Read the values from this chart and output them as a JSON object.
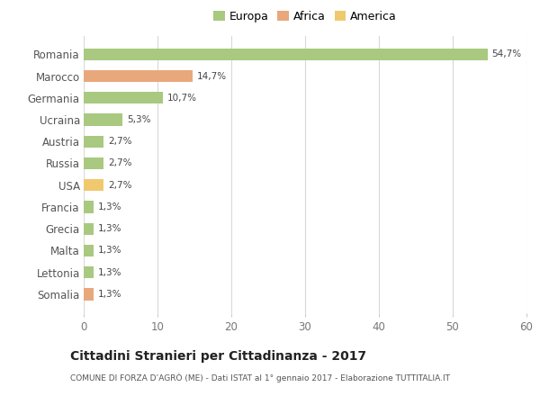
{
  "categories": [
    "Romania",
    "Marocco",
    "Germania",
    "Ucraina",
    "Austria",
    "Russia",
    "USA",
    "Francia",
    "Grecia",
    "Malta",
    "Lettonia",
    "Somalia"
  ],
  "values": [
    54.7,
    14.7,
    10.7,
    5.3,
    2.7,
    2.7,
    2.7,
    1.3,
    1.3,
    1.3,
    1.3,
    1.3
  ],
  "labels": [
    "54,7%",
    "14,7%",
    "10,7%",
    "5,3%",
    "2,7%",
    "2,7%",
    "2,7%",
    "1,3%",
    "1,3%",
    "1,3%",
    "1,3%",
    "1,3%"
  ],
  "colors": [
    "#a8c97f",
    "#e8a87c",
    "#a8c97f",
    "#a8c97f",
    "#a8c97f",
    "#a8c97f",
    "#f0c96e",
    "#a8c97f",
    "#a8c97f",
    "#a8c97f",
    "#a8c97f",
    "#e8a87c"
  ],
  "legend_labels": [
    "Europa",
    "Africa",
    "America"
  ],
  "legend_colors": [
    "#a8c97f",
    "#e8a87c",
    "#f0c96e"
  ],
  "title": "Cittadini Stranieri per Cittadinanza - 2017",
  "subtitle": "COMUNE DI FORZA D’AGRÒ (ME) - Dati ISTAT al 1° gennaio 2017 - Elaborazione TUTTITALIA.IT",
  "xlim": [
    0,
    60
  ],
  "xticks": [
    0,
    10,
    20,
    30,
    40,
    50,
    60
  ],
  "bg_color": "#ffffff",
  "grid_color": "#d8d8d8",
  "bar_height": 0.55
}
